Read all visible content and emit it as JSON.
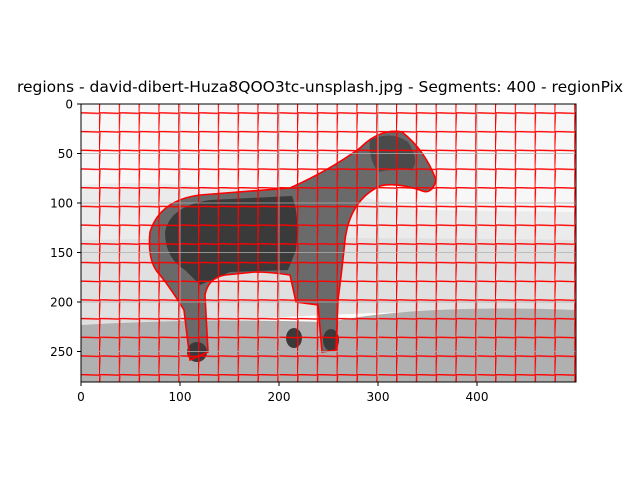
{
  "figure": {
    "title": "regions - david-dibert-Huza8QOO3tc-unsplash.jpg - Segments: 400 - regionPix"
  },
  "image": {
    "width": 500,
    "height": 281,
    "content": "superpixel segmentation of a grayscale horse photo",
    "boundary_color": "#ff0000",
    "tones": {
      "sky": "#f7f7f7",
      "background_band": "#e0e0e0",
      "ground": "#b0b0b0",
      "horse_body": "#3a3a3a",
      "horse_mid": "#6a6a6a"
    }
  },
  "axes": {
    "x_ticks": [
      "0",
      "100",
      "200",
      "300",
      "400"
    ],
    "y_ticks": [
      "0",
      "50",
      "100",
      "150",
      "200",
      "250"
    ],
    "grid": true
  }
}
